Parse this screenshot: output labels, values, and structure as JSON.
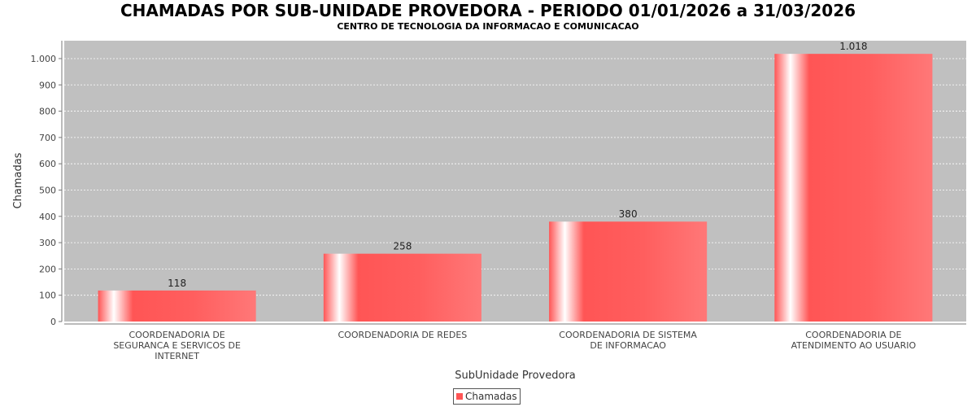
{
  "chart_data": {
    "type": "bar",
    "title": "CHAMADAS POR SUB-UNIDADE PROVEDORA - PERIODO 01/01/2026 a 31/03/2026",
    "subtitle": "CENTRO DE TECNOLOGIA DA INFORMACAO E COMUNICACAO",
    "xlabel": "SubUnidade Provedora",
    "ylabel": "Chamadas",
    "categories": [
      [
        "COORDENADORIA DE",
        "SEGURANCA E SERVICOS DE",
        "INTERNET"
      ],
      [
        "COORDENADORIA DE REDES"
      ],
      [
        "COORDENADORIA DE SISTEMA",
        "DE INFORMACAO"
      ],
      [
        "COORDENADORIA DE",
        "ATENDIMENTO AO USUARIO"
      ]
    ],
    "series": [
      {
        "name": "Chamadas",
        "values": [
          118,
          258,
          380,
          1018
        ],
        "value_labels": [
          "118",
          "258",
          "380",
          "1.018"
        ],
        "color": "#ff5555"
      }
    ],
    "ylim": [
      0,
      1068
    ],
    "y_ticks": [
      0,
      100,
      200,
      300,
      400,
      500,
      600,
      700,
      800,
      900,
      1000
    ],
    "y_tick_labels": [
      "0",
      "100",
      "200",
      "300",
      "400",
      "500",
      "600",
      "700",
      "800",
      "900",
      "1.000"
    ],
    "grid": true,
    "plot_background": "#c0c0c0",
    "legend_position": "bottom"
  }
}
